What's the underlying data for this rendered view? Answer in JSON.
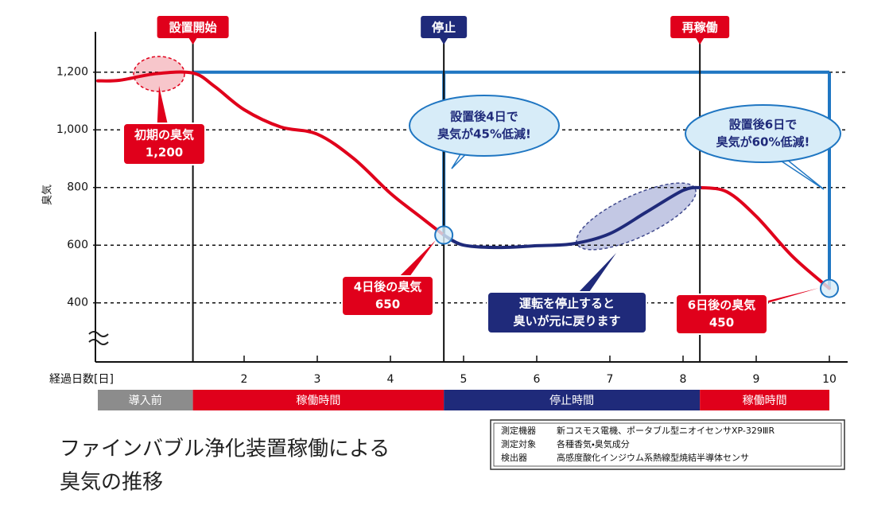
{
  "chart_data": {
    "type": "line",
    "title": [
      "ファインバブル浄化装置稼働による",
      "臭気の推移"
    ],
    "ylabel": "臭気",
    "xlabel": "経過日数[日]",
    "xlim": [
      0,
      10.25
    ],
    "ylim": [
      195,
      1340
    ],
    "xticks": [
      2,
      3,
      4,
      5,
      6,
      7,
      8,
      9,
      10
    ],
    "yticks": [
      {
        "value": 1200,
        "label": "1,200"
      },
      {
        "value": 1000,
        "label": "1,000"
      },
      800,
      600,
      400
    ],
    "grid": true,
    "x": [
      0,
      0.3,
      0.8,
      1.3,
      1.6,
      2,
      2.5,
      3,
      3.5,
      4,
      4.4,
      4.73,
      5,
      5.5,
      6,
      6.5,
      7,
      7.5,
      8,
      8.23,
      8.6,
      9,
      9.5,
      10
    ],
    "series": [
      {
        "color": "#e0001b",
        "values": [
          1170,
          1172,
          1195,
          1197,
          1150,
          1070,
          1010,
          985,
          900,
          780,
          700,
          635,
          null,
          null,
          null,
          null,
          null,
          null,
          null,
          800,
          785,
          700,
          560,
          450
        ]
      },
      {
        "color": "#1f2a7a",
        "values": [
          null,
          null,
          null,
          null,
          null,
          null,
          null,
          null,
          null,
          null,
          null,
          635,
          600,
          592,
          598,
          605,
          640,
          715,
          790,
          800,
          null,
          null,
          null,
          null
        ]
      }
    ],
    "reference": {
      "value": 1200,
      "color": "#1f76c2"
    },
    "highlights": [
      {
        "x": 4.73,
        "y": 635
      },
      {
        "x": 10,
        "y": 450
      }
    ],
    "events": [
      {
        "x": 1.3,
        "label": "設置開始",
        "color": "#e0001b"
      },
      {
        "x": 4.73,
        "label": "停止",
        "color": "#1f2a7a"
      },
      {
        "x": 8.23,
        "label": "再稼働",
        "color": "#e0001b"
      }
    ],
    "phases": [
      {
        "start": 0,
        "end": 1.3,
        "label": "導入前",
        "color": "#8c8c8c"
      },
      {
        "start": 1.3,
        "end": 4.73,
        "label": "稼働時間",
        "color": "#e0001b"
      },
      {
        "start": 4.73,
        "end": 8.23,
        "label": "停止時間",
        "color": "#1f2a7a"
      },
      {
        "start": 8.23,
        "end": 10,
        "label": "稼働時間",
        "color": "#e0001b"
      }
    ],
    "annotations": [
      {
        "lines": [
          "初期の臭気",
          "1,200"
        ],
        "color": "#e0001b",
        "shape": "box"
      },
      {
        "lines": [
          "4日後の臭気",
          "650"
        ],
        "color": "#e0001b",
        "shape": "box"
      },
      {
        "lines": [
          "運転を停止すると",
          "臭いが元に戻ります"
        ],
        "color": "#1f2a7a",
        "shape": "box"
      },
      {
        "lines": [
          "6日後の臭気",
          "450"
        ],
        "color": "#e0001b",
        "shape": "box"
      },
      {
        "lines": [
          "設置後4日で",
          "臭気が45%低減!"
        ],
        "color": "#1f76c2",
        "shape": "cloud"
      },
      {
        "lines": [
          "設置後6日で",
          "臭気が60%低減!"
        ],
        "color": "#1f76c2",
        "shape": "cloud"
      }
    ],
    "notes": [
      [
        "測定機器",
        "新コスモス電機、ポータブル型ニオイセンサXP-329ⅢR"
      ],
      [
        "測定対象",
        "各種香気・臭気成分"
      ],
      [
        "検出器",
        "高感度酸化インジウム系熱線型焼結半導体センサ"
      ]
    ]
  }
}
